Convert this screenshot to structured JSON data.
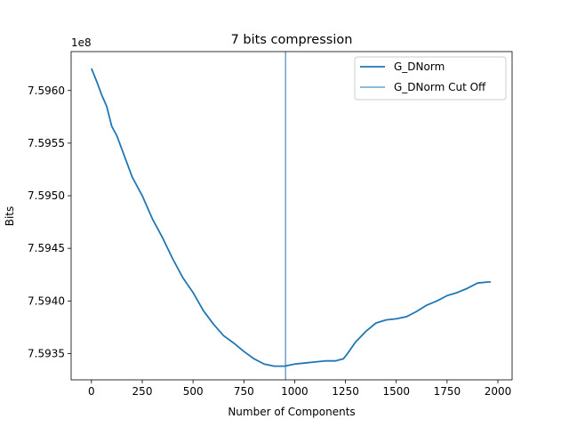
{
  "chart_data": {
    "type": "line",
    "title": "7 bits compression",
    "xlabel": "Number of Components",
    "ylabel": "Bits",
    "y_offset_label": "1e8",
    "y_scale_factor": 100000000,
    "xlim": [
      -100,
      2070
    ],
    "ylim": [
      7.59325,
      7.59637
    ],
    "xticks": [
      0,
      250,
      500,
      750,
      1000,
      1250,
      1500,
      1750,
      2000
    ],
    "xtick_labels": [
      "0",
      "250",
      "500",
      "750",
      "1000",
      "1250",
      "1500",
      "1750",
      "2000"
    ],
    "yticks": [
      7.5935,
      7.594,
      7.5945,
      7.595,
      7.5955,
      7.596
    ],
    "ytick_labels": [
      "7.5935",
      "7.5940",
      "7.5945",
      "7.5950",
      "7.5955",
      "7.5960"
    ],
    "grid": false,
    "legend_position": "upper-right",
    "series": [
      {
        "name": "G_DNorm",
        "color": "#1f77b4",
        "x": [
          0,
          25,
          50,
          75,
          100,
          125,
          150,
          175,
          200,
          250,
          300,
          350,
          400,
          450,
          500,
          550,
          600,
          650,
          700,
          750,
          800,
          850,
          900,
          950,
          1000,
          1050,
          1100,
          1150,
          1200,
          1240,
          1260,
          1300,
          1350,
          1400,
          1450,
          1500,
          1550,
          1600,
          1650,
          1700,
          1750,
          1800,
          1850,
          1900,
          1950,
          1965
        ],
        "y": [
          7.59621,
          7.59609,
          7.59596,
          7.59585,
          7.59566,
          7.59557,
          7.59544,
          7.59531,
          7.59518,
          7.595,
          7.59478,
          7.5946,
          7.5944,
          7.59422,
          7.59408,
          7.59391,
          7.59378,
          7.59367,
          7.5936,
          7.59352,
          7.59345,
          7.5934,
          7.59338,
          7.59338,
          7.5934,
          7.59341,
          7.59342,
          7.59343,
          7.59343,
          7.59345,
          7.5935,
          7.59361,
          7.59371,
          7.59379,
          7.59382,
          7.59383,
          7.59385,
          7.5939,
          7.59396,
          7.594,
          7.59405,
          7.59408,
          7.59412,
          7.59417,
          7.59418,
          7.59418
        ]
      },
      {
        "name": "G_DNorm Cut Off",
        "color": "#1f77b4",
        "type": "vline",
        "x": 955
      }
    ]
  }
}
